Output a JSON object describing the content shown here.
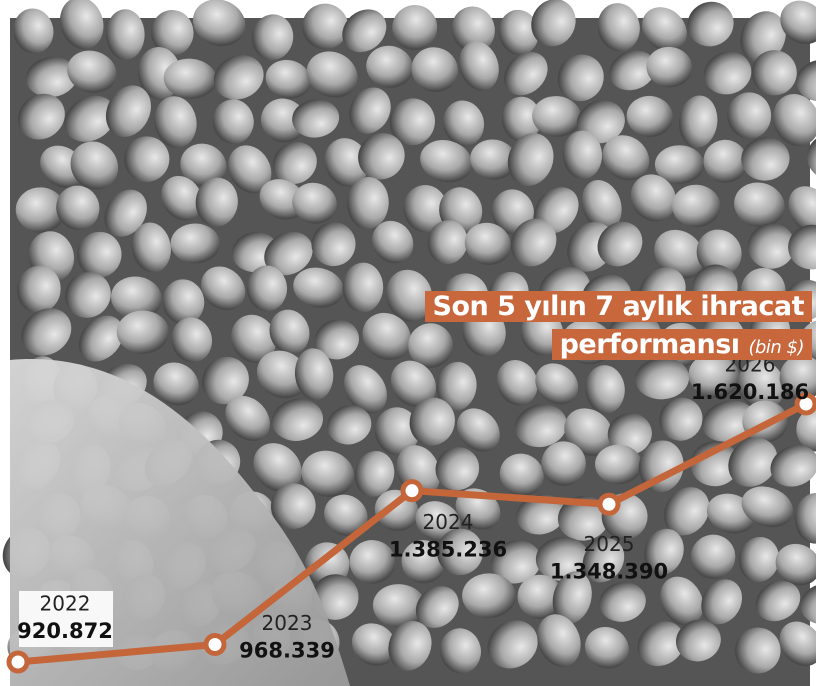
{
  "chart_data": {
    "type": "line",
    "title": "Son 5 yılın 7 aylık ihracat performansı",
    "subtitle": "(bin $)",
    "categories": [
      "2022",
      "2023",
      "2024",
      "2025",
      "2026"
    ],
    "values": [
      920872,
      968339,
      1385236,
      1348390,
      1620186
    ],
    "value_labels": [
      "920.872",
      "968.339",
      "1.385.236",
      "1.348.390",
      "1.620.186"
    ],
    "color": "#c4653a"
  }
}
